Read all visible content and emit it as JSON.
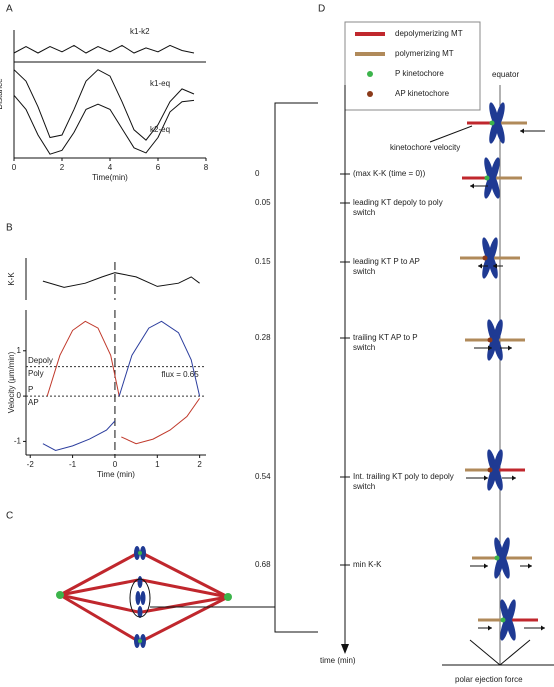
{
  "panels": {
    "a": "A",
    "b": "B",
    "c": "C",
    "d": "D"
  },
  "chart_data": [
    {
      "type": "line",
      "x_label": "Time(min)",
      "y_label": "Distance",
      "x": [
        0,
        0.5,
        1,
        1.5,
        2,
        2.5,
        3,
        3.5,
        4,
        4.5,
        5,
        5.5,
        6,
        6.5,
        7,
        7.5
      ],
      "xlim": [
        0,
        8
      ],
      "xticks": [
        0,
        2,
        4,
        6,
        8
      ],
      "ylim": [
        0,
        10
      ],
      "series": [
        {
          "name": "k1-k2",
          "color": "#111",
          "values": [
            8.2,
            8.7,
            8.2,
            8.7,
            8.3,
            8.8,
            8.2,
            8.7,
            8.3,
            8.8,
            8.2,
            8.6,
            8.3,
            8.8,
            8.4,
            8.2
          ]
        },
        {
          "name": "k1-eq",
          "color": "#111",
          "values": [
            6.9,
            6.0,
            4.0,
            1.6,
            1.8,
            3.8,
            6.0,
            6.9,
            6.4,
            4.4,
            2.2,
            1.4,
            2.6,
            4.4,
            5.4,
            5.0
          ]
        },
        {
          "name": "k2-eq",
          "color": "#111",
          "values": [
            4.9,
            3.8,
            1.8,
            0.3,
            0.6,
            2.0,
            3.8,
            4.2,
            3.8,
            2.3,
            0.8,
            0.4,
            1.6,
            3.6,
            4.4,
            4.5
          ]
        }
      ]
    },
    {
      "type": "line",
      "y_label": "K-K",
      "x": [
        -1.7,
        -1.2,
        -0.7,
        -0.3,
        0,
        0.5,
        1.0,
        1.5,
        1.8,
        2.0
      ],
      "xlim": [
        -2.1,
        2.15
      ],
      "ylim": [
        -0.5,
        1.5
      ],
      "vline": 0,
      "series": [
        {
          "color": "#111",
          "values": [
            0.4,
            0.1,
            0.3,
            0.6,
            0.8,
            0.6,
            0.15,
            0.3,
            0.6,
            0.3
          ]
        }
      ]
    },
    {
      "type": "line",
      "x_label": "Time (min)",
      "y_label": "Velocity (μm/min)",
      "xlim": [
        -2.1,
        2.15
      ],
      "xticks": [
        -2,
        -1,
        0,
        1,
        2
      ],
      "ylim": [
        -1.3,
        1.9
      ],
      "yticks": [
        -1,
        0,
        1
      ],
      "vline": 0,
      "hlines": [
        {
          "value": 0.65,
          "label": "flux = 0.65"
        },
        0
      ],
      "region_labels": [
        "Depoly",
        "Poly",
        "P",
        "AP"
      ],
      "series": [
        {
          "color": "#c0392b",
          "x": [
            -1.6,
            -1.3,
            -1.0,
            -0.7,
            -0.4,
            -0.1,
            0.1,
            0.12,
            0.15,
            0.5,
            0.9,
            1.3,
            1.7,
            2.0
          ],
          "values": [
            0,
            0.9,
            1.45,
            1.65,
            1.5,
            0.9,
            0,
            null,
            -0.9,
            -1.05,
            -0.95,
            -0.75,
            -0.45,
            -0.05
          ]
        },
        {
          "color": "#2c3e9e",
          "x": [
            -1.7,
            -1.4,
            -1.0,
            -0.6,
            -0.2,
            0.0,
            0.05,
            0.1,
            0.4,
            0.8,
            1.1,
            1.5,
            1.8,
            2.0
          ],
          "values": [
            -1.05,
            -1.2,
            -1.1,
            -0.95,
            -0.75,
            -0.55,
            null,
            0,
            0.9,
            1.5,
            1.65,
            1.4,
            0.8,
            0
          ]
        }
      ]
    }
  ],
  "diagram": {
    "legend": [
      "depolymerizing MT",
      "polymerizing MT",
      "P kinetochore",
      "AP kinetochore"
    ],
    "equator": "equator",
    "velocity_label": "kinetochore velocity",
    "time_axis": "time (min)",
    "force_label": "polar ejection force",
    "events": [
      {
        "time": 0,
        "label": [
          "(max K-K (time = 0))"
        ]
      },
      {
        "time": 0.05,
        "label": [
          "leading KT depoly to poly",
          "switch"
        ]
      },
      {
        "time": 0.15,
        "label": [
          "leading KT P to AP",
          "switch"
        ]
      },
      {
        "time": 0.28,
        "label": [
          "trailing KT AP to P",
          "switch"
        ]
      },
      {
        "time": 0.54,
        "label": [
          "Int. trailing KT poly to depoly",
          "switch"
        ]
      },
      {
        "time": 0.68,
        "label": [
          "min K-K"
        ]
      }
    ]
  }
}
